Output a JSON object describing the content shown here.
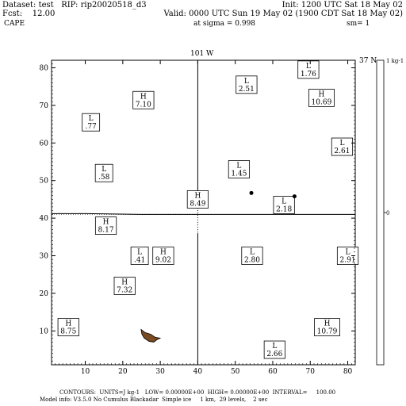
{
  "header": {
    "dataset": "Dataset: test   RIP: rip20020518_d3",
    "init": "Init: 1200 UTC Sat 18 May 02",
    "fcst": "Fcst:    12.00",
    "valid": "Valid: 0000 UTC Sun 19 May 02 (1900 CDT Sat 18 May 02)",
    "field": "CAPE",
    "sigma": "at sigma = 0.998",
    "sm": "sm= 1"
  },
  "plot": {
    "top_label": "101 W",
    "right_lat_label": "37 N",
    "xticks": [
      10,
      20,
      30,
      40,
      50,
      60,
      70,
      80
    ],
    "yticks": [
      10,
      20,
      30,
      40,
      50,
      60,
      70,
      80
    ],
    "xlim": [
      1,
      82
    ],
    "ylim": [
      1,
      82
    ],
    "colorbar": {
      "top_label": "1 kg-1",
      "mid_label": "0"
    },
    "markers": [
      {
        "type": "H",
        "value": "7.10",
        "x": 25.5,
        "y": 71.4
      },
      {
        "type": "H",
        "value": "8.49",
        "x": 40.0,
        "y": 45.0
      },
      {
        "type": "H",
        "value": "8.17",
        "x": 15.5,
        "y": 38.0
      },
      {
        "type": "H",
        "value": "9.02",
        "x": 30.8,
        "y": 30.0
      },
      {
        "type": "H",
        "value": "7.32",
        "x": 20.5,
        "y": 22.0
      },
      {
        "type": "H",
        "value": "8.75",
        "x": 5.5,
        "y": 11.0
      },
      {
        "type": "H",
        "value": "10.69",
        "x": 73.0,
        "y": 72.0
      },
      {
        "type": "H",
        "value": "10.79",
        "x": 74.5,
        "y": 11.0
      },
      {
        "type": "L",
        "value": ".77",
        "x": 11.5,
        "y": 65.5
      },
      {
        "type": "L",
        "value": ".58",
        "x": 15.0,
        "y": 52.0
      },
      {
        "type": "L",
        "value": "1.45",
        "x": 51.0,
        "y": 53.0
      },
      {
        "type": "L",
        "value": "2.51",
        "x": 53.0,
        "y": 75.5
      },
      {
        "type": "L",
        "value": "1.76",
        "x": 69.5,
        "y": 79.5
      },
      {
        "type": "L",
        "value": "2.61",
        "x": 78.5,
        "y": 59.0
      },
      {
        "type": "L",
        "value": "2.18",
        "x": 63.0,
        "y": 43.5
      },
      {
        "type": "L",
        "value": ".41",
        "x": 24.5,
        "y": 30.0
      },
      {
        "type": "L",
        "value": "2.80",
        "x": 54.5,
        "y": 30.0
      },
      {
        "type": "L",
        "value": "2.91",
        "x": 80.0,
        "y": 30.0
      },
      {
        "type": "L",
        "value": "2.66",
        "x": 60.5,
        "y": 5.0
      }
    ],
    "dots": [
      {
        "x": 54.3,
        "y": 46.7
      },
      {
        "x": 65.8,
        "y": 45.8
      }
    ],
    "vertical_line_x": 40,
    "horizontal_line_y": 41,
    "terrain_color": "#7a4a22"
  },
  "footer": {
    "line1": "CONTOURS:  UNITS=J kg-1   LOW= 0.00000E+00  HIGH= 0.00000E+00  INTERVAL=     100.00",
    "line2": "Model info: V3.5.0 No Cumulus Blackadar  Simple ice     1 km,  29 levels,    2 sec"
  }
}
